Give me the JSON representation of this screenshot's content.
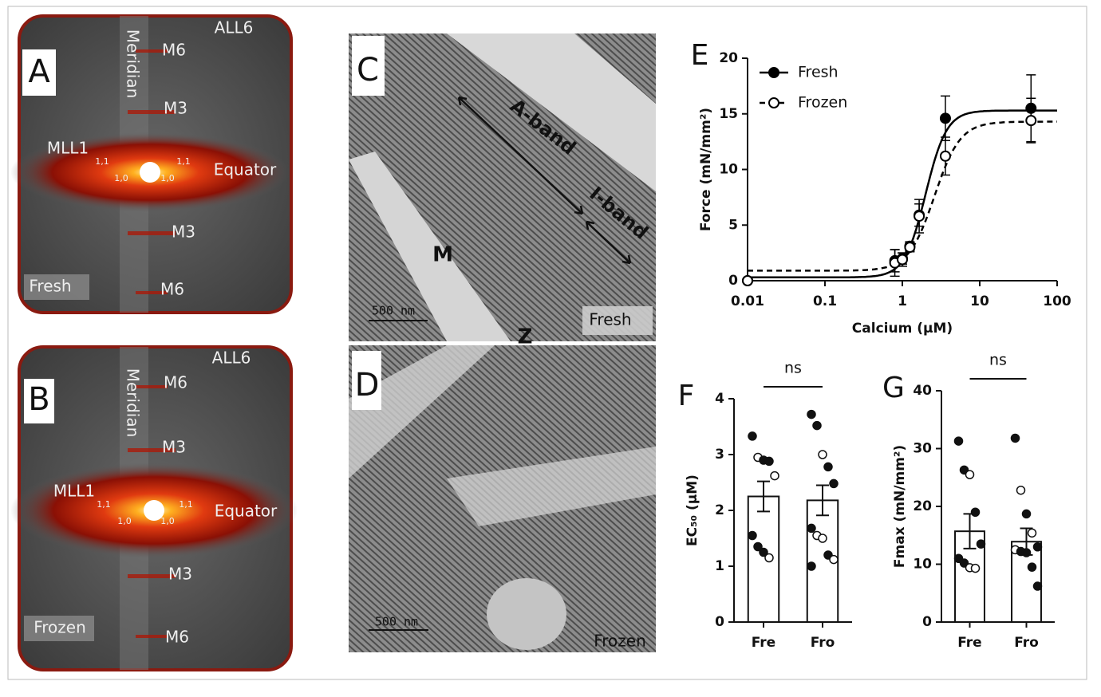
{
  "panels": {
    "A": {
      "letter": "A",
      "meridian": "Meridian",
      "all6": "ALL6",
      "m6_top": "M6",
      "m3_top": "M3",
      "mll1": "MLL1",
      "r11_left": "1,1",
      "r11_right": "1,1",
      "r10_left": "1,0",
      "r10_right": "1,0",
      "equator": "Equator",
      "m3_bottom": "M3",
      "m6_bottom": "M6",
      "condition": "Fresh"
    },
    "B": {
      "letter": "B",
      "meridian": "Meridian",
      "all6": "ALL6",
      "m6_top": "M6",
      "m3_top": "M3",
      "mll1": "MLL1",
      "r11_left": "1,1",
      "r11_right": "1,1",
      "r10_left": "1,0",
      "r10_right": "1,0",
      "equator": "Equator",
      "m3_bottom": "M3",
      "m6_bottom": "M6",
      "condition": "Frozen"
    },
    "C": {
      "letter": "C",
      "a_band": "A-band",
      "i_band": "I-band",
      "m_line": "M",
      "z_line": "Z",
      "scale": "500 nm",
      "condition": "Fresh"
    },
    "D": {
      "letter": "D",
      "scale": "500 nm",
      "condition": "Frozen"
    }
  },
  "chart_data": [
    {
      "type": "line",
      "panel": "E",
      "x_label": "Calcium (μM)",
      "y_label": "Force (mN/mm²)",
      "xlog": true,
      "xlim": [
        0.01,
        100
      ],
      "xticks": [
        0.01,
        0.1,
        1,
        10,
        100
      ],
      "ylim": [
        0,
        20
      ],
      "yticks": [
        0,
        5,
        10,
        15,
        20
      ],
      "legend": "upper left",
      "series": [
        {
          "name": "Fresh",
          "color": "#000000",
          "line_style": "solid",
          "filled": true,
          "x": [
            0.01,
            0.8,
            1.0,
            1.25,
            1.65,
            3.6,
            46
          ],
          "values": [
            0,
            1.8,
            2.0,
            3.1,
            5.9,
            14.6,
            15.5
          ],
          "errors": [
            0,
            1.0,
            0.5,
            0.4,
            1.0,
            2.0,
            3.0
          ],
          "fit": {
            "bottom": 0.3,
            "top": 15.3,
            "ec50": 2.0,
            "hill": 3.2
          }
        },
        {
          "name": "Frozen",
          "color": "#000000",
          "line_style": "dashed",
          "filled": false,
          "x": [
            0.01,
            0.8,
            1.0,
            1.25,
            1.65,
            3.6,
            46
          ],
          "values": [
            0,
            1.6,
            1.9,
            3.0,
            5.8,
            11.2,
            14.4
          ],
          "errors": [
            0,
            1.2,
            0.6,
            0.4,
            1.5,
            1.7,
            2.0
          ],
          "fit": {
            "bottom": 0.9,
            "top": 14.3,
            "ec50": 2.6,
            "hill": 2.6
          }
        }
      ]
    },
    {
      "type": "bar",
      "panel": "F",
      "y_label": "EC₅₀ (μM)",
      "categories": [
        "Fre",
        "Fro"
      ],
      "values": [
        2.25,
        2.18
      ],
      "errors": [
        0.27,
        0.27
      ],
      "ylim": [
        0,
        4
      ],
      "yticks": [
        0,
        1,
        2,
        3,
        4
      ],
      "annotation": "ns",
      "points": [
        [
          {
            "y": 3.33,
            "filled": true
          },
          {
            "y": 2.95,
            "filled": false
          },
          {
            "y": 2.9,
            "filled": true
          },
          {
            "y": 2.88,
            "filled": true
          },
          {
            "y": 2.62,
            "filled": false
          },
          {
            "y": 1.55,
            "filled": true
          },
          {
            "y": 1.35,
            "filled": true
          },
          {
            "y": 1.25,
            "filled": true
          },
          {
            "y": 1.15,
            "filled": false
          }
        ],
        [
          {
            "y": 3.72,
            "filled": true
          },
          {
            "y": 3.52,
            "filled": true
          },
          {
            "y": 3.0,
            "filled": false
          },
          {
            "y": 2.78,
            "filled": true
          },
          {
            "y": 2.48,
            "filled": true
          },
          {
            "y": 1.68,
            "filled": true
          },
          {
            "y": 1.55,
            "filled": false
          },
          {
            "y": 1.5,
            "filled": false
          },
          {
            "y": 1.2,
            "filled": true
          },
          {
            "y": 1.12,
            "filled": false
          },
          {
            "y": 1.0,
            "filled": true
          }
        ]
      ]
    },
    {
      "type": "bar",
      "panel": "G",
      "y_label": "Fmax (mN/mm²)",
      "categories": [
        "Fre",
        "Fro"
      ],
      "values": [
        15.7,
        13.9
      ],
      "errors": [
        3.0,
        2.3
      ],
      "ylim": [
        0,
        40
      ],
      "yticks": [
        0,
        10,
        20,
        30,
        40
      ],
      "annotation": "ns",
      "points": [
        [
          {
            "y": 31.3,
            "filled": true
          },
          {
            "y": 26.3,
            "filled": true
          },
          {
            "y": 25.5,
            "filled": false
          },
          {
            "y": 19.0,
            "filled": true
          },
          {
            "y": 13.5,
            "filled": true
          },
          {
            "y": 11.0,
            "filled": true
          },
          {
            "y": 10.2,
            "filled": true
          },
          {
            "y": 9.4,
            "filled": false
          },
          {
            "y": 9.3,
            "filled": false
          }
        ],
        [
          {
            "y": 31.8,
            "filled": true
          },
          {
            "y": 22.8,
            "filled": false
          },
          {
            "y": 18.7,
            "filled": true
          },
          {
            "y": 15.4,
            "filled": false
          },
          {
            "y": 13.0,
            "filled": true
          },
          {
            "y": 12.5,
            "filled": false
          },
          {
            "y": 12.2,
            "filled": true
          },
          {
            "y": 12.0,
            "filled": true
          },
          {
            "y": 9.5,
            "filled": true
          },
          {
            "y": 6.2,
            "filled": true
          }
        ]
      ]
    }
  ]
}
